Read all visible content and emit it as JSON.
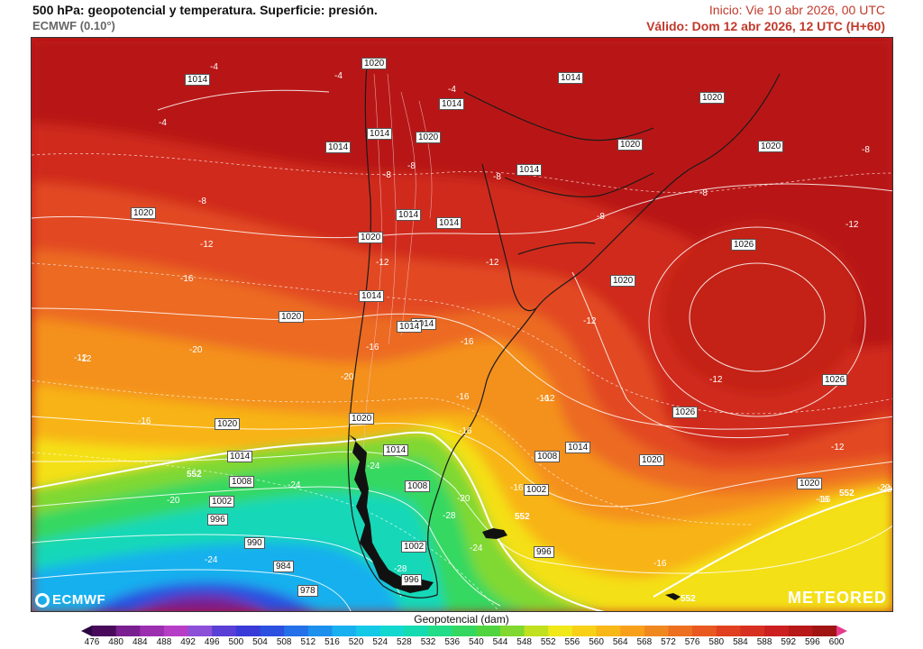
{
  "header": {
    "title": "500 hPa: geopotencial y temperatura. Superficie: presión.",
    "model": "ECMWF (0.10°)",
    "init": "Inicio: Vie 10 abr 2026, 00 UTC",
    "valid": "Válido: Dom 12 abr 2026, 12 UTC (H+60)"
  },
  "logos": {
    "left": "ECMWF",
    "right": "METEORED"
  },
  "legend": {
    "title": "Geopotencial (dam)",
    "ticks": [
      "476",
      "480",
      "484",
      "488",
      "492",
      "496",
      "500",
      "504",
      "508",
      "512",
      "516",
      "520",
      "524",
      "528",
      "532",
      "536",
      "540",
      "544",
      "548",
      "552",
      "556",
      "560",
      "564",
      "568",
      "572",
      "576",
      "580",
      "584",
      "588",
      "592",
      "596",
      "600"
    ],
    "colors": [
      "#4a0a5c",
      "#7a1f8f",
      "#9b2fb0",
      "#b63ec7",
      "#8c4fd8",
      "#5a3fd6",
      "#3a3ad8",
      "#2c50e0",
      "#2470e8",
      "#1c90ec",
      "#18b0ee",
      "#14c8e8",
      "#12d8d0",
      "#14dcb0",
      "#22dc88",
      "#34d860",
      "#50d440",
      "#80d830",
      "#c0e020",
      "#f0e818",
      "#f8d018",
      "#f8b818",
      "#f8a01c",
      "#f08820",
      "#ec7020",
      "#e85820",
      "#e04020",
      "#d83020",
      "#cc2020",
      "#b81818",
      "#a01414",
      "#e83a8a"
    ],
    "under_color": "#2a0640",
    "over_color": "#e83a8a"
  },
  "map_labels": {
    "pressure": [
      "1020",
      "1014",
      "1014",
      "1014",
      "1020",
      "1014",
      "1020",
      "1014",
      "1020",
      "1014",
      "1020",
      "1014",
      "1020",
      "1014",
      "1026",
      "1020",
      "1014",
      "1020",
      "1014",
      "1020",
      "1014",
      "1008",
      "1026",
      "1020",
      "1014",
      "1020",
      "1014",
      "1008",
      "1002",
      "996",
      "990",
      "984",
      "978",
      "1008",
      "1002",
      "996",
      "1002",
      "996",
      "1014",
      "1020",
      "1026",
      "1020"
    ],
    "temperature": [
      "-4",
      "-4",
      "-4",
      "-4",
      "-8",
      "-8",
      "-8",
      "-8",
      "-8",
      "-8",
      "-8",
      "-12",
      "-12",
      "-12",
      "-12",
      "-12",
      "-16",
      "-16",
      "-12",
      "-16",
      "-12",
      "-20",
      "-16",
      "-20",
      "-16",
      "-16",
      "-16",
      "-16",
      "-20",
      "-24",
      "-24",
      "-24",
      "-20",
      "-28",
      "-24",
      "-28",
      "-20",
      "-16",
      "-16",
      "-12",
      "-12",
      "-12",
      "-20",
      "-16"
    ],
    "geopotential": [
      "552",
      "552",
      "552",
      "552"
    ]
  }
}
